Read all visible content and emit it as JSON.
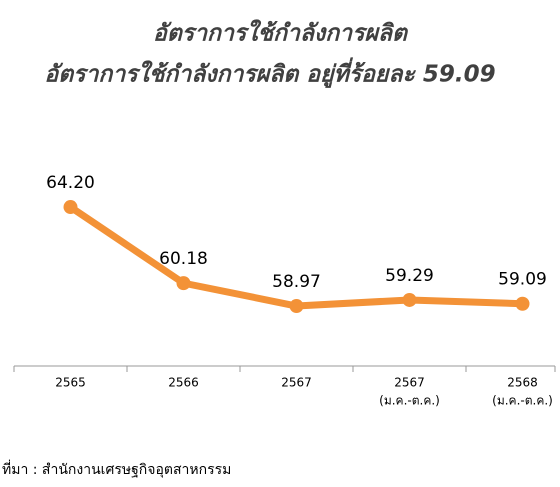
{
  "chart_data": {
    "type": "line",
    "title": "อัตราการใช้กำลังการผลิต",
    "subtitle": "อัตราการใช้กำลังการผลิต อยู่ที่ร้อยละ 59.09",
    "categories": [
      [
        "2565"
      ],
      [
        "2566"
      ],
      [
        "2567"
      ],
      [
        "2567",
        "(ม.ค.-ต.ค.)"
      ],
      [
        "2568",
        "(ม.ค.-ต.ค.)"
      ]
    ],
    "series": [
      {
        "color": "#f39237",
        "values": [
          64.2,
          60.18,
          58.97,
          59.29,
          59.09
        ],
        "value_labels": [
          "64.20",
          "60.18",
          "58.97",
          "59.29",
          "59.09"
        ]
      }
    ],
    "ylim": [
      55.8,
      66
    ],
    "source": "ที่มา : สำนักงานเศรษฐกิจอุตสาหกรรม"
  }
}
